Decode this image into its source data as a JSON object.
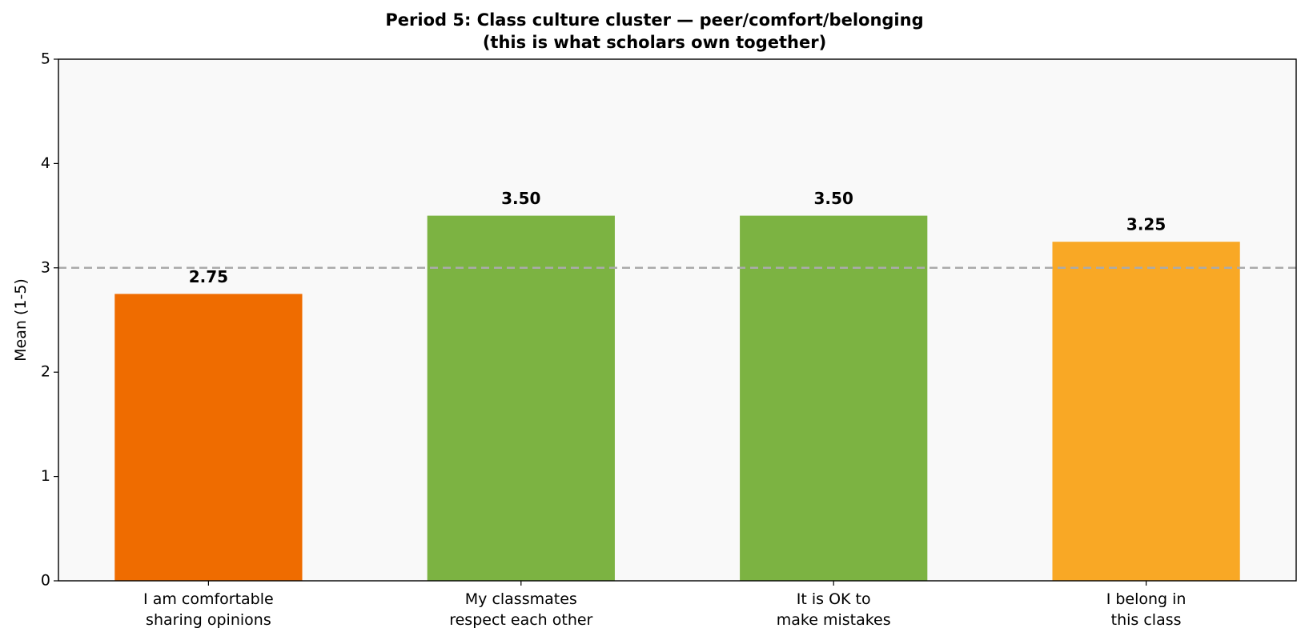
{
  "chart_data": {
    "type": "bar",
    "title": "Period 5: Class culture cluster — peer/comfort/belonging\n(this is what scholars own together)",
    "y_label": "Mean (1-5)",
    "categories": [
      "I am comfortable\nsharing opinions",
      "My classmates\nrespect each other",
      "It is OK to\nmake mistakes",
      "I belong in\nthis class"
    ],
    "values": [
      2.75,
      3.5,
      3.5,
      3.25
    ],
    "value_labels": [
      "2.75",
      "3.50",
      "3.50",
      "3.25"
    ],
    "colors": [
      "#ef6c00",
      "#7cb342",
      "#7cb342",
      "#f9a825"
    ],
    "reference_line": 3,
    "ylim": [
      0,
      5
    ],
    "yticks": [
      0,
      1,
      2,
      3,
      4,
      5
    ],
    "grid": false
  }
}
